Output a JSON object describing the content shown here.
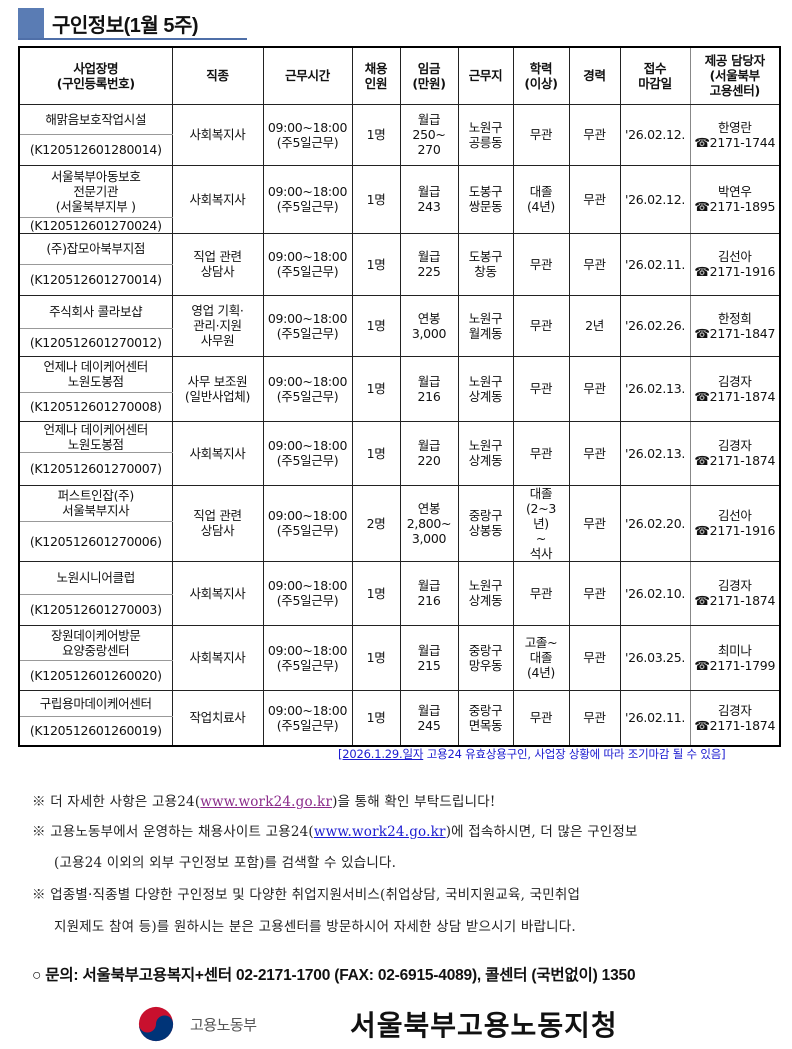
{
  "title": "구인정보(1월 5주)",
  "headers": [
    "사업장명\n(구인등록번호)",
    "직종",
    "근무시간",
    "채용\n인원",
    "임금\n(만원)",
    "근무지",
    "학력\n(이상)",
    "경력",
    "접수\n마감일",
    "제공 담당자\n(서울북부\n고용센터)"
  ],
  "rows": [
    {
      "name": "해맑음보호작업시설",
      "id": "(K120512601280014)",
      "job": "사회복지사",
      "hours": "09:00~18:00\n(주5일근무)",
      "count": "1명",
      "wage": "월급\n250~\n270",
      "location": "노원구\n공릉동",
      "education": "무관",
      "experience": "무관",
      "deadline": "'26.02.12.",
      "contact": "한영란\n☎2171-1744"
    },
    {
      "name": "서울북부아동보호\n전문기관\n(서울북부지부 )",
      "id": "(K120512601270024)",
      "job": "사회복지사",
      "hours": "09:00~18:00\n(주5일근무)",
      "count": "1명",
      "wage": "월급\n243",
      "location": "도봉구\n쌍문동",
      "education": "대졸\n(4년)",
      "experience": "무관",
      "deadline": "'26.02.12.",
      "contact": "박연우\n☎2171-1895"
    },
    {
      "name": "(주)잡모아북부지점",
      "id": "(K120512601270014)",
      "job": "직업 관련\n상담사",
      "hours": "09:00~18:00\n(주5일근무)",
      "count": "1명",
      "wage": "월급\n225",
      "location": "도봉구\n창동",
      "education": "무관",
      "experience": "무관",
      "deadline": "'26.02.11.",
      "contact": "김선아\n☎2171-1916"
    },
    {
      "name": "주식회사 콜라보샵",
      "id": "(K120512601270012)",
      "job": "영업 기획·\n관리·지원\n사무원",
      "hours": "09:00~18:00\n(주5일근무)",
      "count": "1명",
      "wage": "연봉\n3,000",
      "location": "노원구\n월계동",
      "education": "무관",
      "experience": "2년",
      "deadline": "'26.02.26.",
      "contact": "한정희\n☎2171-1847"
    },
    {
      "name": "언제나 데이케어센터\n노원도봉점",
      "id": "(K120512601270008)",
      "job": "사무 보조원\n(일반사업체)",
      "hours": "09:00~18:00\n(주5일근무)",
      "count": "1명",
      "wage": "월급\n216",
      "location": "노원구\n상계동",
      "education": "무관",
      "experience": "무관",
      "deadline": "'26.02.13.",
      "contact": "김경자\n☎2171-1874"
    },
    {
      "name": "언제나 데이케어센터\n노원도봉점",
      "id": "(K120512601270007)",
      "job": "사회복지사",
      "hours": "09:00~18:00\n(주5일근무)",
      "count": "1명",
      "wage": "월급\n220",
      "location": "노원구\n상계동",
      "education": "무관",
      "experience": "무관",
      "deadline": "'26.02.13.",
      "contact": "김경자\n☎2171-1874"
    },
    {
      "name": "퍼스트인잡(주)\n서울북부지사",
      "id": "(K120512601270006)",
      "job": "직업 관련\n상담사",
      "hours": "09:00~18:00\n(주5일근무)",
      "count": "2명",
      "wage": "연봉\n2,800~\n3,000",
      "location": "중랑구\n상봉동",
      "education": "대졸\n(2~3\n년)\n~\n석사",
      "experience": "무관",
      "deadline": "'26.02.20.",
      "contact": "김선아\n☎2171-1916"
    },
    {
      "name": "노원시니어클럽",
      "id": "(K120512601270003)",
      "job": "사회복지사",
      "hours": "09:00~18:00\n(주5일근무)",
      "count": "1명",
      "wage": "월급\n216",
      "location": "노원구\n상계동",
      "education": "무관",
      "experience": "무관",
      "deadline": "'26.02.10.",
      "contact": "김경자\n☎2171-1874"
    },
    {
      "name": "장원데이케어방문\n요양중랑센터",
      "id": "(K120512601260020)",
      "job": "사회복지사",
      "hours": "09:00~18:00\n(주5일근무)",
      "count": "1명",
      "wage": "월급\n215",
      "location": "중랑구\n망우동",
      "education": "고졸~\n대졸\n(4년)",
      "experience": "무관",
      "deadline": "'26.03.25.",
      "contact": "최미나\n☎2171-1799"
    },
    {
      "name": "구립용마데이케어센터",
      "id": "(K120512601260019)",
      "job": "작업치료사",
      "hours": "09:00~18:00\n(주5일근무)",
      "count": "1명",
      "wage": "월급\n245",
      "location": "중랑구\n면목동",
      "education": "무관",
      "experience": "무관",
      "deadline": "'26.02.11.",
      "contact": "김경자\n☎2171-1874"
    }
  ],
  "footnote": {
    "date": "[2026.1.29.일자",
    "text": " 고용24 유효상용구인, 사업장 상황에 따라 조기마감 될 수 있음]"
  },
  "notes": {
    "n1_pre": "※ 더 자세한 사항은 고용24(",
    "n1_link": "www.work24.go.kr",
    "n1_post": ")을 통해 확인 부탁드립니다!",
    "n2_pre": "※ 고용노동부에서 운영하는 채용사이트 고용24(",
    "n2_link": "www.work24.go.kr",
    "n2_post": ")에 접속하시면, 더 많은 구인정보",
    "n2_line2": "(고용24 이외의 외부 구인정보 포함)를 검색할 수 있습니다.",
    "n3_line1": "※ 업종별·직종별 다양한 구인정보 및 다양한 취업지원서비스(취업상담, 국비지원교육, 국민취업",
    "n3_line2": "지원제도 참여 등)를 원하시는 분은 고용센터를 방문하시어 자세한 상담 받으시기 바랍니다."
  },
  "contact_line": "○ 문의: 서울북부고용복지+센터 02-2171-1700 (FAX: 02-6915-4089), 콜센터 (국번없이) 1350",
  "ministry_logo_text": "고용노동부",
  "office_name": "서울북부고용노동지청",
  "colors": {
    "accent": "#5a7cb4",
    "link_purple": "#8a2a8a",
    "link_blue": "#1b1bd0"
  }
}
